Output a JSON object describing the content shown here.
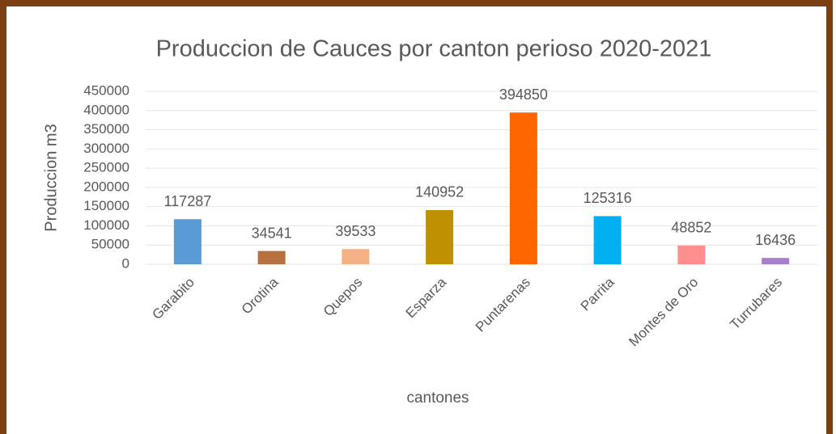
{
  "chart_data": {
    "type": "bar",
    "title": "Produccion de Cauces por canton perioso 2020-2021",
    "x_label": "cantones",
    "y_label": "Produccion m3",
    "categories": [
      "Garabito",
      "Orotina",
      "Quepos",
      "Esparza",
      "Puntarenas",
      "Parrita",
      "Montes de Oro",
      "Turrubares"
    ],
    "values": [
      117287,
      34541,
      39533,
      140952,
      394850,
      125316,
      48852,
      16436
    ],
    "colors": [
      "#5b9bd5",
      "#b8703f",
      "#f4b183",
      "#bf9000",
      "#ff6600",
      "#00b0f0",
      "#ff8f8f",
      "#a67fd0"
    ],
    "ylim": [
      0,
      450000
    ],
    "yticks": [
      0,
      50000,
      100000,
      150000,
      200000,
      250000,
      300000,
      350000,
      400000,
      450000
    ],
    "grid": true
  }
}
